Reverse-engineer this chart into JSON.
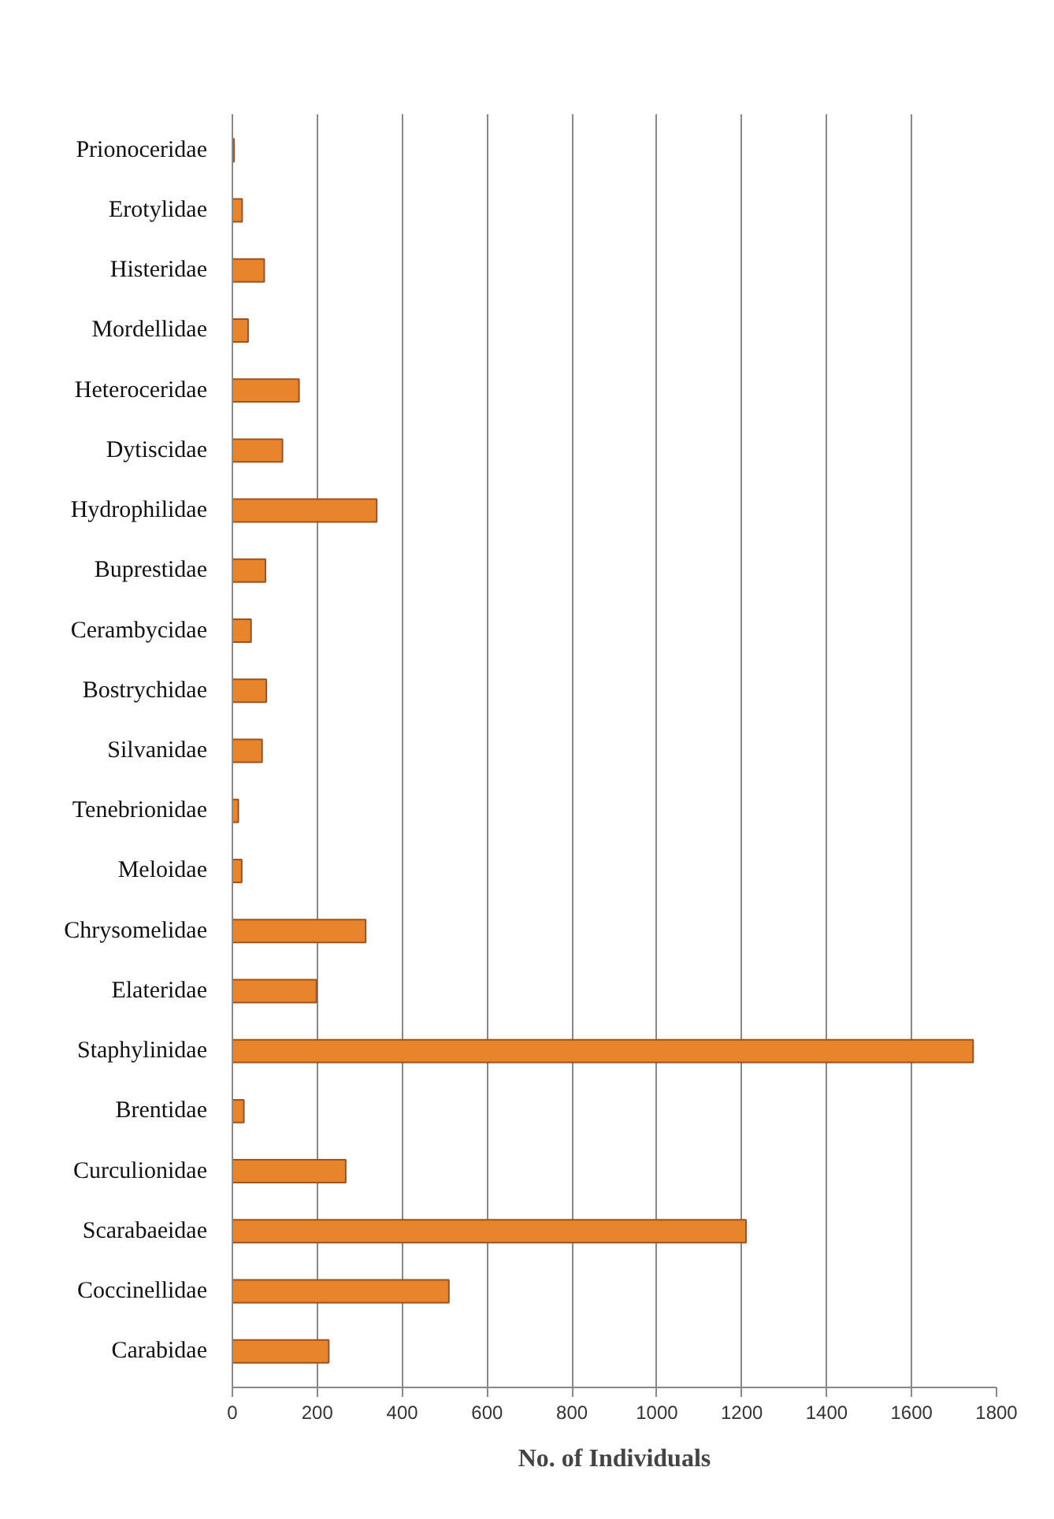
{
  "chart_data": {
    "type": "bar",
    "orientation": "horizontal",
    "xlabel": "No. of Individuals",
    "categories": [
      "Prionoceridae",
      "Erotylidae",
      "Histeridae",
      "Mordellidae",
      "Heteroceridae",
      "Dytiscidae",
      "Hydrophilidae",
      "Buprestidae",
      "Cerambycidae",
      "Bostrychidae",
      "Silvanidae",
      "Tenebrionidae",
      "Meloidae",
      "Chrysomelidae",
      "Elateridae",
      "Staphylinidae",
      "Brentidae",
      "Curculionidae",
      "Scarabaeidae",
      "Coccinellidae",
      "Carabidae"
    ],
    "values": [
      4,
      23,
      75,
      37,
      157,
      118,
      340,
      78,
      44,
      80,
      70,
      14,
      22,
      314,
      198,
      1745,
      27,
      267,
      1210,
      510,
      227
    ],
    "color": "#e8852c",
    "xlim": [
      0,
      1800
    ],
    "xticks": [
      0,
      200,
      400,
      600,
      800,
      1000,
      1200,
      1400,
      1600,
      1800
    ],
    "grid": "x"
  }
}
